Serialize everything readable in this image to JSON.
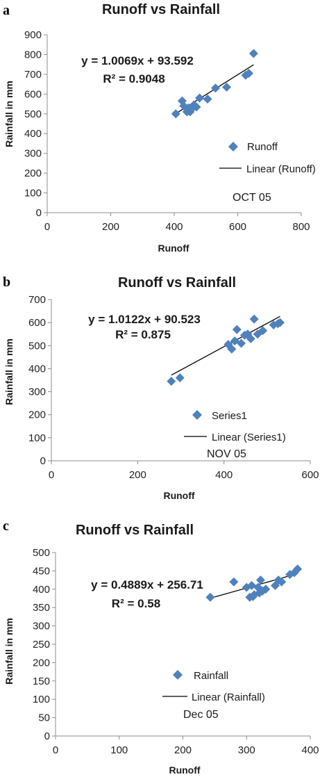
{
  "panels": [
    {
      "letter": "a",
      "note": "OCT 05"
    },
    {
      "letter": "b",
      "note": "NOV 05"
    },
    {
      "letter": "c",
      "note": "Dec 05"
    }
  ],
  "chart_data": [
    {
      "type": "scatter",
      "title": "Runoff vs Rainfall",
      "xlabel": "Runoff",
      "ylabel": "Rainfall in mm",
      "xlim": [
        0,
        800
      ],
      "ylim": [
        0,
        900
      ],
      "xticks": [
        0,
        200,
        400,
        600,
        800
      ],
      "yticks": [
        0,
        100,
        200,
        300,
        400,
        500,
        600,
        700,
        800,
        900
      ],
      "grid": false,
      "legend_position": "right",
      "series": [
        {
          "name": "Runoff",
          "color": "#4f81bd",
          "marker": "diamond",
          "x": [
            405,
            425,
            430,
            440,
            445,
            450,
            455,
            462,
            470,
            480,
            505,
            530,
            565,
            625,
            635,
            650
          ],
          "y": [
            500,
            565,
            540,
            510,
            530,
            510,
            525,
            545,
            535,
            580,
            575,
            630,
            635,
            695,
            705,
            805
          ]
        }
      ],
      "trendline": {
        "name": "Linear (Runoff)",
        "slope": 1.0069,
        "intercept": 93.592,
        "x_range": [
          405,
          650
        ]
      },
      "equation": "y = 1.0069x + 93.592",
      "r2": "R² = 0.9048"
    },
    {
      "type": "scatter",
      "title": "Runoff vs Rainfall",
      "xlabel": "Runoff",
      "ylabel": "Rainfall in mm",
      "xlim": [
        0,
        600
      ],
      "ylim": [
        0,
        700
      ],
      "xticks": [
        0,
        200,
        400,
        600
      ],
      "yticks": [
        0,
        100,
        200,
        300,
        400,
        500,
        600,
        700
      ],
      "grid": false,
      "legend_position": "right",
      "series": [
        {
          "name": "Series1",
          "color": "#4f81bd",
          "marker": "diamond",
          "x": [
            278,
            298,
            410,
            418,
            425,
            430,
            440,
            448,
            455,
            462,
            470,
            478,
            490,
            515,
            525,
            530
          ],
          "y": [
            345,
            360,
            505,
            485,
            520,
            570,
            510,
            545,
            550,
            530,
            615,
            550,
            565,
            590,
            595,
            600
          ]
        }
      ],
      "trendline": {
        "name": "Linear (Series1)",
        "slope": 1.0122,
        "intercept": 90.523,
        "x_range": [
          278,
          530
        ]
      },
      "equation": "y = 1.0122x + 90.523",
      "r2": "R² = 0.875"
    },
    {
      "type": "scatter",
      "title": "Runoff vs Rainfall",
      "xlabel": "Runoff",
      "ylabel": "Rainfall in mm",
      "xlim": [
        0,
        400
      ],
      "ylim": [
        0,
        500
      ],
      "xticks": [
        0,
        100,
        200,
        300,
        400
      ],
      "yticks": [
        0,
        50,
        100,
        150,
        200,
        250,
        300,
        350,
        400,
        450,
        500
      ],
      "grid": false,
      "legend_position": "right",
      "series": [
        {
          "name": "Rainfall",
          "color": "#4f81bd",
          "marker": "diamond",
          "x": [
            243,
            280,
            300,
            305,
            308,
            310,
            312,
            318,
            320,
            322,
            325,
            330,
            345,
            350,
            355,
            368,
            375,
            380
          ],
          "y": [
            378,
            420,
            405,
            378,
            410,
            380,
            385,
            405,
            390,
            425,
            395,
            400,
            410,
            425,
            420,
            440,
            445,
            455
          ]
        }
      ],
      "trendline": {
        "name": "Linear (Rainfall)",
        "slope": 0.4889,
        "intercept": 256.71,
        "x_range": [
          243,
          380
        ]
      },
      "equation": "y = 0.4889x + 256.71",
      "r2": "R² = 0.58"
    }
  ]
}
